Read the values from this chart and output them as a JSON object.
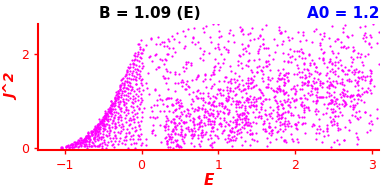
{
  "title_left": "B = 1.09 (E)",
  "title_right": "A0 = 1.2",
  "xlabel": "E",
  "ylabel": "J^2",
  "xlim": [
    -1.35,
    3.1
  ],
  "ylim": [
    -0.05,
    2.65
  ],
  "xticks": [
    -1,
    0,
    1,
    2,
    3
  ],
  "yticks": [
    0,
    2
  ],
  "dot_color": "#ff00ff",
  "dot_size": 2.5,
  "axis_color": "red",
  "title_left_color": "black",
  "title_right_color": "blue",
  "B": 1.09,
  "A0": 1.2,
  "figsize": [
    3.85,
    1.94
  ],
  "dpi": 100
}
